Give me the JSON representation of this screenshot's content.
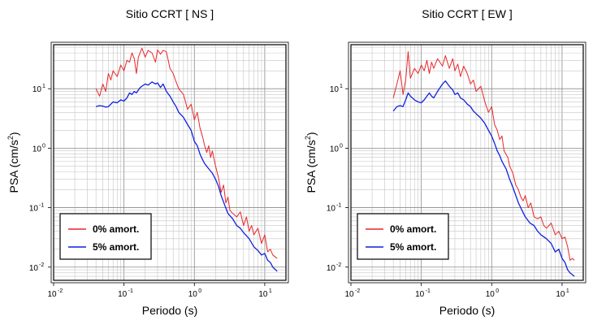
{
  "chart_data": [
    {
      "type": "line",
      "title": "Sitio CCRT [ NS ]",
      "xlabel": "Periodo (s)",
      "ylabel": "PSA (cm/s",
      "ylabel_sup": "2",
      "ylabel_close": ")",
      "xscale": "log",
      "yscale": "log",
      "xlim": [
        0.01,
        20
      ],
      "ylim": [
        0.006,
        55
      ],
      "grid": true,
      "legend_position": "bottom-left",
      "x_ticks": [
        {
          "base": "10",
          "exp": "-2"
        },
        {
          "base": "10",
          "exp": "-1"
        },
        {
          "base": "10",
          "exp": "0"
        },
        {
          "base": "10",
          "exp": "1"
        }
      ],
      "y_ticks": [
        {
          "base": "10",
          "exp": "-2"
        },
        {
          "base": "10",
          "exp": "-1"
        },
        {
          "base": "10",
          "exp": "0"
        },
        {
          "base": "10",
          "exp": "1"
        }
      ],
      "series": [
        {
          "name": "0% amort.",
          "color": "#e8262a",
          "points": [
            [
              0.04,
              10
            ],
            [
              0.045,
              7.5
            ],
            [
              0.05,
              12
            ],
            [
              0.055,
              9
            ],
            [
              0.06,
              18
            ],
            [
              0.065,
              14
            ],
            [
              0.07,
              20
            ],
            [
              0.08,
              16
            ],
            [
              0.09,
              25
            ],
            [
              0.1,
              20
            ],
            [
              0.11,
              30
            ],
            [
              0.12,
              28
            ],
            [
              0.13,
              40
            ],
            [
              0.14,
              32
            ],
            [
              0.15,
              18
            ],
            [
              0.16,
              34
            ],
            [
              0.18,
              48
            ],
            [
              0.2,
              34
            ],
            [
              0.22,
              44
            ],
            [
              0.25,
              40
            ],
            [
              0.28,
              28
            ],
            [
              0.3,
              45
            ],
            [
              0.33,
              38
            ],
            [
              0.36,
              44
            ],
            [
              0.4,
              42
            ],
            [
              0.45,
              22
            ],
            [
              0.5,
              18
            ],
            [
              0.55,
              13
            ],
            [
              0.6,
              10
            ],
            [
              0.7,
              8
            ],
            [
              0.8,
              4.5
            ],
            [
              0.9,
              5.5
            ],
            [
              1.0,
              3
            ],
            [
              1.1,
              4
            ],
            [
              1.2,
              2.2
            ],
            [
              1.3,
              1.6
            ],
            [
              1.4,
              1.1
            ],
            [
              1.5,
              0.85
            ],
            [
              1.6,
              1.1
            ],
            [
              1.7,
              0.7
            ],
            [
              1.8,
              0.9
            ],
            [
              2.0,
              0.5
            ],
            [
              2.2,
              0.32
            ],
            [
              2.4,
              0.18
            ],
            [
              2.6,
              0.24
            ],
            [
              2.8,
              0.12
            ],
            [
              3.0,
              0.15
            ],
            [
              3.2,
              0.09
            ],
            [
              3.5,
              0.08
            ],
            [
              4.0,
              0.07
            ],
            [
              4.5,
              0.085
            ],
            [
              5.0,
              0.05
            ],
            [
              5.5,
              0.07
            ],
            [
              6.0,
              0.04
            ],
            [
              6.5,
              0.05
            ],
            [
              7.0,
              0.035
            ],
            [
              8.0,
              0.045
            ],
            [
              9.0,
              0.025
            ],
            [
              10.0,
              0.035
            ],
            [
              11.0,
              0.018
            ],
            [
              12.0,
              0.02
            ],
            [
              13.0,
              0.016
            ],
            [
              15.0,
              0.014
            ]
          ]
        },
        {
          "name": "5% amort.",
          "color": "#1020e0",
          "points": [
            [
              0.04,
              5
            ],
            [
              0.045,
              5.2
            ],
            [
              0.05,
              5.1
            ],
            [
              0.055,
              4.9
            ],
            [
              0.06,
              5
            ],
            [
              0.07,
              6
            ],
            [
              0.08,
              5.8
            ],
            [
              0.09,
              6.5
            ],
            [
              0.1,
              6.2
            ],
            [
              0.11,
              7
            ],
            [
              0.12,
              8.5
            ],
            [
              0.13,
              8
            ],
            [
              0.14,
              9
            ],
            [
              0.15,
              8.5
            ],
            [
              0.17,
              10.5
            ],
            [
              0.2,
              12
            ],
            [
              0.22,
              11.5
            ],
            [
              0.25,
              13
            ],
            [
              0.28,
              12
            ],
            [
              0.3,
              12.5
            ],
            [
              0.33,
              10.5
            ],
            [
              0.36,
              12
            ],
            [
              0.4,
              9
            ],
            [
              0.45,
              7.5
            ],
            [
              0.5,
              6
            ],
            [
              0.55,
              5
            ],
            [
              0.6,
              4
            ],
            [
              0.7,
              3.3
            ],
            [
              0.8,
              2.5
            ],
            [
              0.9,
              2
            ],
            [
              1.0,
              1.3
            ],
            [
              1.1,
              1.1
            ],
            [
              1.2,
              0.8
            ],
            [
              1.3,
              0.65
            ],
            [
              1.4,
              0.55
            ],
            [
              1.6,
              0.45
            ],
            [
              1.8,
              0.38
            ],
            [
              2.0,
              0.3
            ],
            [
              2.2,
              0.23
            ],
            [
              2.4,
              0.16
            ],
            [
              2.7,
              0.11
            ],
            [
              3.0,
              0.08
            ],
            [
              3.5,
              0.065
            ],
            [
              4.0,
              0.05
            ],
            [
              4.5,
              0.045
            ],
            [
              5.0,
              0.038
            ],
            [
              6.0,
              0.03
            ],
            [
              7.0,
              0.022
            ],
            [
              8.0,
              0.019
            ],
            [
              9.0,
              0.016
            ],
            [
              10.0,
              0.017
            ],
            [
              11.0,
              0.013
            ],
            [
              12.0,
              0.012
            ],
            [
              13.0,
              0.01
            ],
            [
              15.0,
              0.0085
            ]
          ]
        }
      ]
    },
    {
      "type": "line",
      "title": "Sitio CCRT [ EW ]",
      "xlabel": "Periodo (s)",
      "ylabel": "PSA (cm/s",
      "ylabel_sup": "2",
      "ylabel_close": ")",
      "xscale": "log",
      "yscale": "log",
      "xlim": [
        0.01,
        20
      ],
      "ylim": [
        0.006,
        55
      ],
      "grid": true,
      "legend_position": "bottom-left",
      "x_ticks": [
        {
          "base": "10",
          "exp": "-2"
        },
        {
          "base": "10",
          "exp": "-1"
        },
        {
          "base": "10",
          "exp": "0"
        },
        {
          "base": "10",
          "exp": "1"
        }
      ],
      "y_ticks": [
        {
          "base": "10",
          "exp": "-2"
        },
        {
          "base": "10",
          "exp": "-1"
        },
        {
          "base": "10",
          "exp": "0"
        },
        {
          "base": "10",
          "exp": "1"
        }
      ],
      "series": [
        {
          "name": "0% amort.",
          "color": "#e8262a",
          "points": [
            [
              0.04,
              7
            ],
            [
              0.045,
              12
            ],
            [
              0.05,
              20
            ],
            [
              0.055,
              8
            ],
            [
              0.06,
              14
            ],
            [
              0.065,
              42
            ],
            [
              0.07,
              15
            ],
            [
              0.08,
              22
            ],
            [
              0.09,
              18
            ],
            [
              0.1,
              25
            ],
            [
              0.11,
              20
            ],
            [
              0.12,
              30
            ],
            [
              0.13,
              18
            ],
            [
              0.14,
              28
            ],
            [
              0.15,
              22
            ],
            [
              0.17,
              32
            ],
            [
              0.2,
              24
            ],
            [
              0.22,
              36
            ],
            [
              0.25,
              22
            ],
            [
              0.28,
              32
            ],
            [
              0.3,
              20
            ],
            [
              0.33,
              26
            ],
            [
              0.36,
              16
            ],
            [
              0.4,
              24
            ],
            [
              0.45,
              18
            ],
            [
              0.5,
              12
            ],
            [
              0.55,
              14
            ],
            [
              0.6,
              9
            ],
            [
              0.7,
              11
            ],
            [
              0.8,
              6
            ],
            [
              0.9,
              4
            ],
            [
              1.0,
              5
            ],
            [
              1.1,
              2.5
            ],
            [
              1.2,
              2
            ],
            [
              1.3,
              1.4
            ],
            [
              1.4,
              1.6
            ],
            [
              1.5,
              0.9
            ],
            [
              1.7,
              0.7
            ],
            [
              1.8,
              0.5
            ],
            [
              2.0,
              0.38
            ],
            [
              2.2,
              0.24
            ],
            [
              2.4,
              0.2
            ],
            [
              2.6,
              0.15
            ],
            [
              2.8,
              0.13
            ],
            [
              3.0,
              0.16
            ],
            [
              3.3,
              0.1
            ],
            [
              3.6,
              0.12
            ],
            [
              4.0,
              0.07
            ],
            [
              4.5,
              0.065
            ],
            [
              5.0,
              0.07
            ],
            [
              5.5,
              0.05
            ],
            [
              6.0,
              0.045
            ],
            [
              7.0,
              0.055
            ],
            [
              8.0,
              0.035
            ],
            [
              9.0,
              0.04
            ],
            [
              10.0,
              0.03
            ],
            [
              11.0,
              0.032
            ],
            [
              12.0,
              0.022
            ],
            [
              13.0,
              0.013
            ],
            [
              14.0,
              0.014
            ],
            [
              15.0,
              0.013
            ]
          ]
        },
        {
          "name": "5% amort.",
          "color": "#1020e0",
          "points": [
            [
              0.04,
              4.2
            ],
            [
              0.045,
              5
            ],
            [
              0.05,
              5.2
            ],
            [
              0.055,
              5
            ],
            [
              0.06,
              6.5
            ],
            [
              0.065,
              8.5
            ],
            [
              0.07,
              7.5
            ],
            [
              0.08,
              6.5
            ],
            [
              0.09,
              6
            ],
            [
              0.1,
              5.8
            ],
            [
              0.11,
              6.5
            ],
            [
              0.12,
              7.5
            ],
            [
              0.13,
              8.5
            ],
            [
              0.14,
              7.5
            ],
            [
              0.15,
              7
            ],
            [
              0.17,
              9
            ],
            [
              0.2,
              12
            ],
            [
              0.22,
              13.5
            ],
            [
              0.25,
              11
            ],
            [
              0.28,
              9.5
            ],
            [
              0.3,
              8
            ],
            [
              0.33,
              8.5
            ],
            [
              0.36,
              7
            ],
            [
              0.4,
              6.5
            ],
            [
              0.45,
              5.5
            ],
            [
              0.5,
              5
            ],
            [
              0.55,
              4.2
            ],
            [
              0.6,
              3.8
            ],
            [
              0.7,
              3.2
            ],
            [
              0.8,
              2.6
            ],
            [
              0.9,
              2
            ],
            [
              1.0,
              1.6
            ],
            [
              1.1,
              1.2
            ],
            [
              1.2,
              0.9
            ],
            [
              1.3,
              0.75
            ],
            [
              1.4,
              0.6
            ],
            [
              1.6,
              0.45
            ],
            [
              1.8,
              0.3
            ],
            [
              2.0,
              0.22
            ],
            [
              2.2,
              0.16
            ],
            [
              2.4,
              0.12
            ],
            [
              2.7,
              0.09
            ],
            [
              3.0,
              0.07
            ],
            [
              3.5,
              0.055
            ],
            [
              4.0,
              0.05
            ],
            [
              4.5,
              0.04
            ],
            [
              5.0,
              0.035
            ],
            [
              6.0,
              0.03
            ],
            [
              7.0,
              0.025
            ],
            [
              8.0,
              0.018
            ],
            [
              9.0,
              0.02
            ],
            [
              10.0,
              0.014
            ],
            [
              11.0,
              0.012
            ],
            [
              12.0,
              0.009
            ],
            [
              13.0,
              0.008
            ],
            [
              15.0,
              0.007
            ]
          ]
        }
      ]
    }
  ]
}
